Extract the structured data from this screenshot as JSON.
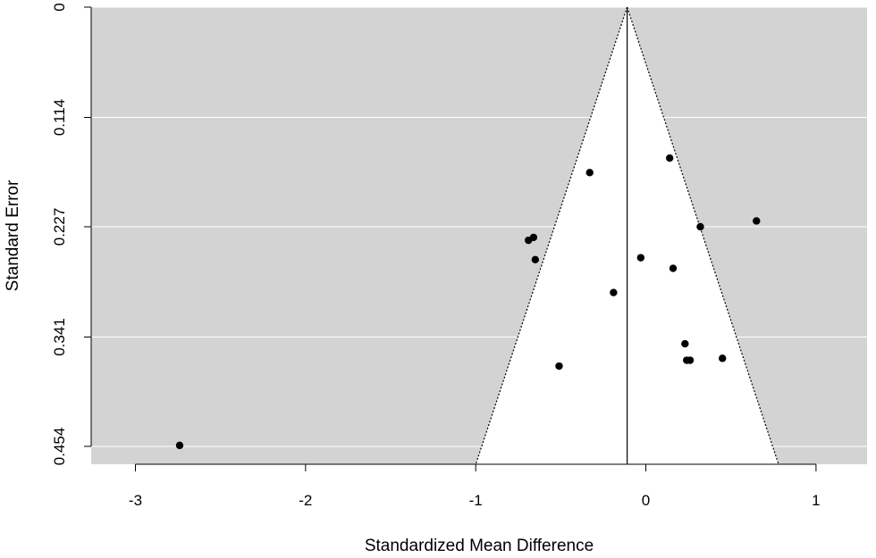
{
  "chart_data": {
    "type": "scatter",
    "subtype": "funnel",
    "title": "",
    "xlabel": "Standardized Mean Difference",
    "ylabel": "Standard Error",
    "xlim": [
      -3.26,
      1.3
    ],
    "ylim": [
      0,
      0.4725
    ],
    "y_inverted": true,
    "x_ticks": [
      -3,
      -2,
      -1,
      0,
      1
    ],
    "x_tick_labels": [
      "-3",
      "-2",
      "-1",
      "0",
      "1"
    ],
    "y_ticks": [
      0,
      0.114,
      0.227,
      0.341,
      0.454
    ],
    "y_tick_labels": [
      "0",
      "0.114",
      "0.227",
      "0.341",
      "0.454"
    ],
    "grid": "horizontal",
    "background_color": "#d3d3d3",
    "funnel_fill": "#ffffff",
    "funnel": {
      "center": -0.11,
      "z": 1.96,
      "max_se": 0.454
    },
    "points": [
      {
        "x": 0.14,
        "y": 0.156
      },
      {
        "x": -0.33,
        "y": 0.171
      },
      {
        "x": 0.65,
        "y": 0.221
      },
      {
        "x": 0.32,
        "y": 0.227
      },
      {
        "x": -0.69,
        "y": 0.241
      },
      {
        "x": -0.66,
        "y": 0.238
      },
      {
        "x": -0.65,
        "y": 0.261
      },
      {
        "x": -0.03,
        "y": 0.259
      },
      {
        "x": 0.16,
        "y": 0.27
      },
      {
        "x": -0.19,
        "y": 0.295
      },
      {
        "x": 0.23,
        "y": 0.348
      },
      {
        "x": 0.24,
        "y": 0.365
      },
      {
        "x": 0.26,
        "y": 0.365
      },
      {
        "x": 0.45,
        "y": 0.363
      },
      {
        "x": -0.51,
        "y": 0.371
      },
      {
        "x": -2.74,
        "y": 0.453
      }
    ],
    "colors": {
      "points": "#000000",
      "grid": "#ffffff",
      "funnel_line": "#000000",
      "axis": "#000000"
    }
  }
}
